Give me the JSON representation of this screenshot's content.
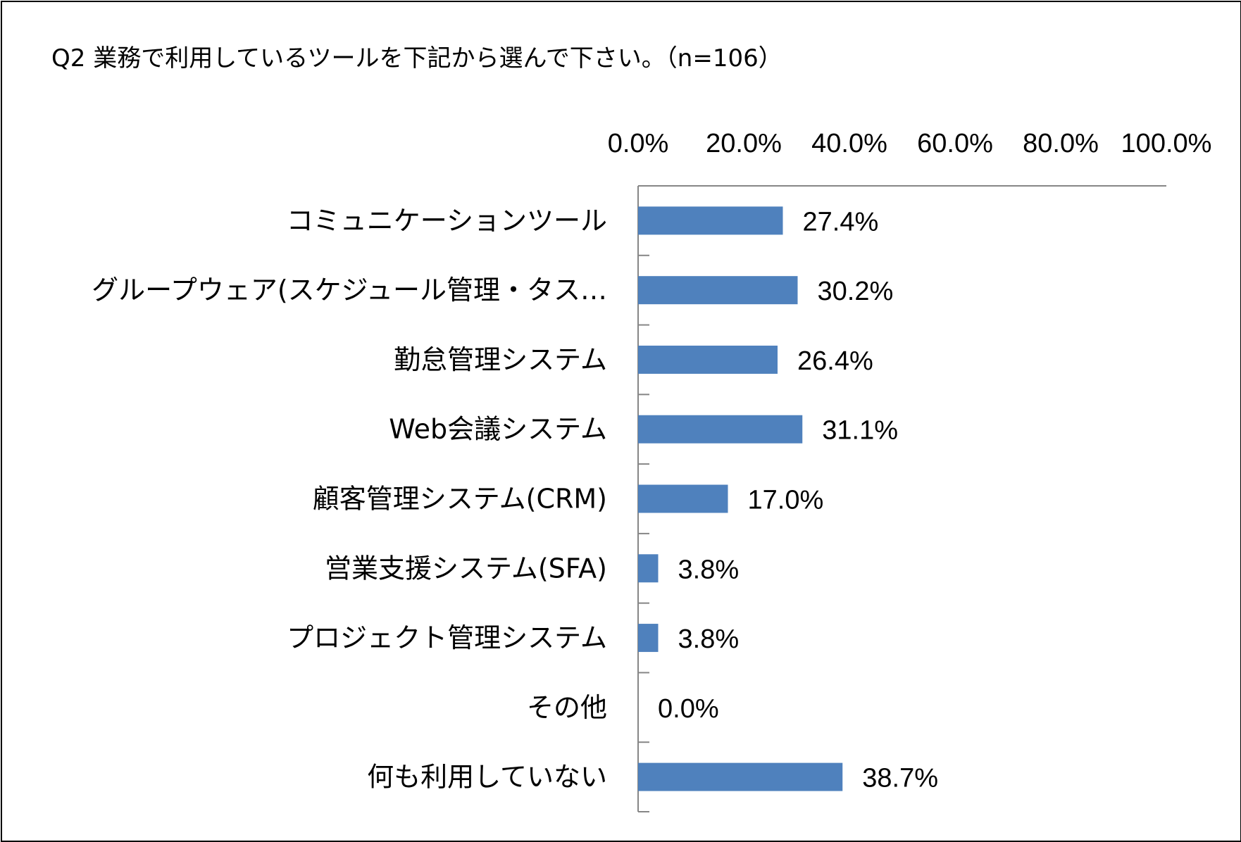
{
  "chart_data": {
    "type": "bar",
    "orientation": "horizontal",
    "title": "Q2 業務で利用しているツールを下記から選んで下さい。（n=106）",
    "categories": [
      "コミュニケーションツール",
      "グループウェア(スケジュール管理・タス…",
      "勤怠管理システム",
      "Web会議システム",
      "顧客管理システム(CRM)",
      "営業支援システム(SFA)",
      "プロジェクト管理システム",
      "その他",
      "何も利用していない"
    ],
    "values": [
      27.4,
      30.2,
      26.4,
      31.1,
      17.0,
      3.8,
      3.8,
      0.0,
      38.7
    ],
    "data_labels": [
      "27.4%",
      "30.2%",
      "26.4%",
      "31.1%",
      "17.0%",
      "3.8%",
      "3.8%",
      "0.0%",
      "38.7%"
    ],
    "xticks": [
      "0.0%",
      "20.0%",
      "40.0%",
      "60.0%",
      "80.0%",
      "100.0%"
    ],
    "xlim": [
      0,
      100
    ],
    "x_axis_position": "top",
    "grid": false,
    "legend": "none",
    "bar_color": "#4F81BD"
  }
}
